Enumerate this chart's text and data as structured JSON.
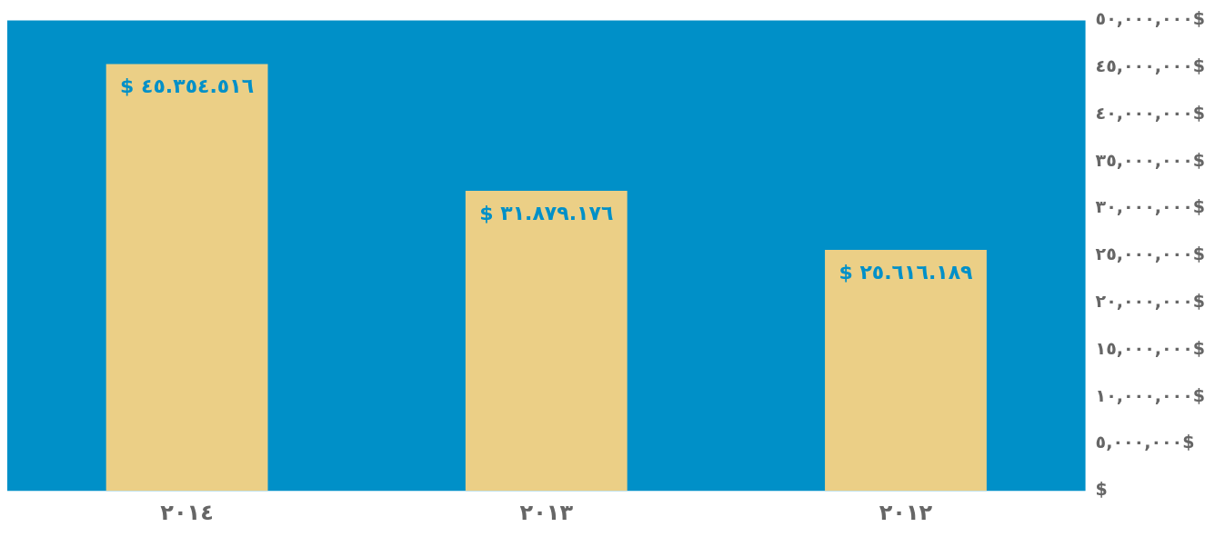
{
  "chart_data": {
    "type": "bar",
    "categories": [
      "٢٠١٤",
      "٢٠١٣",
      "٢٠١٢"
    ],
    "values": [
      45354516,
      31879176,
      25616189
    ],
    "value_labels": [
      "$ ٤٥.٣٥٤.٥١٦",
      "$ ٣١.٨٧٩.١٧٦",
      "$ ٢٥.٦١٦.١٨٩"
    ],
    "color": "#ebcf86",
    "ylim": [
      0,
      50000000
    ],
    "yticks": [
      {
        "value": 0,
        "label": "$"
      },
      {
        "value": 5000000,
        "label": "٥,٠٠٠,٠٠٠$"
      },
      {
        "value": 10000000,
        "label": "١٠,٠٠٠,٠٠٠$"
      },
      {
        "value": 15000000,
        "label": "١٥,٠٠٠,٠٠٠$"
      },
      {
        "value": 20000000,
        "label": "٢٠,٠٠٠,٠٠٠$"
      },
      {
        "value": 25000000,
        "label": "٢٥,٠٠٠,٠٠٠$"
      },
      {
        "value": 30000000,
        "label": "٣٠,٠٠٠,٠٠٠$"
      },
      {
        "value": 35000000,
        "label": "٣٥,٠٠٠,٠٠٠$"
      },
      {
        "value": 40000000,
        "label": "٤٠,٠٠٠,٠٠٠$"
      },
      {
        "value": 45000000,
        "label": "٤٥,٠٠٠,٠٠٠$"
      },
      {
        "value": 50000000,
        "label": "٥٠,٠٠٠,٠٠٠$"
      }
    ],
    "grid": false,
    "legend": false
  }
}
